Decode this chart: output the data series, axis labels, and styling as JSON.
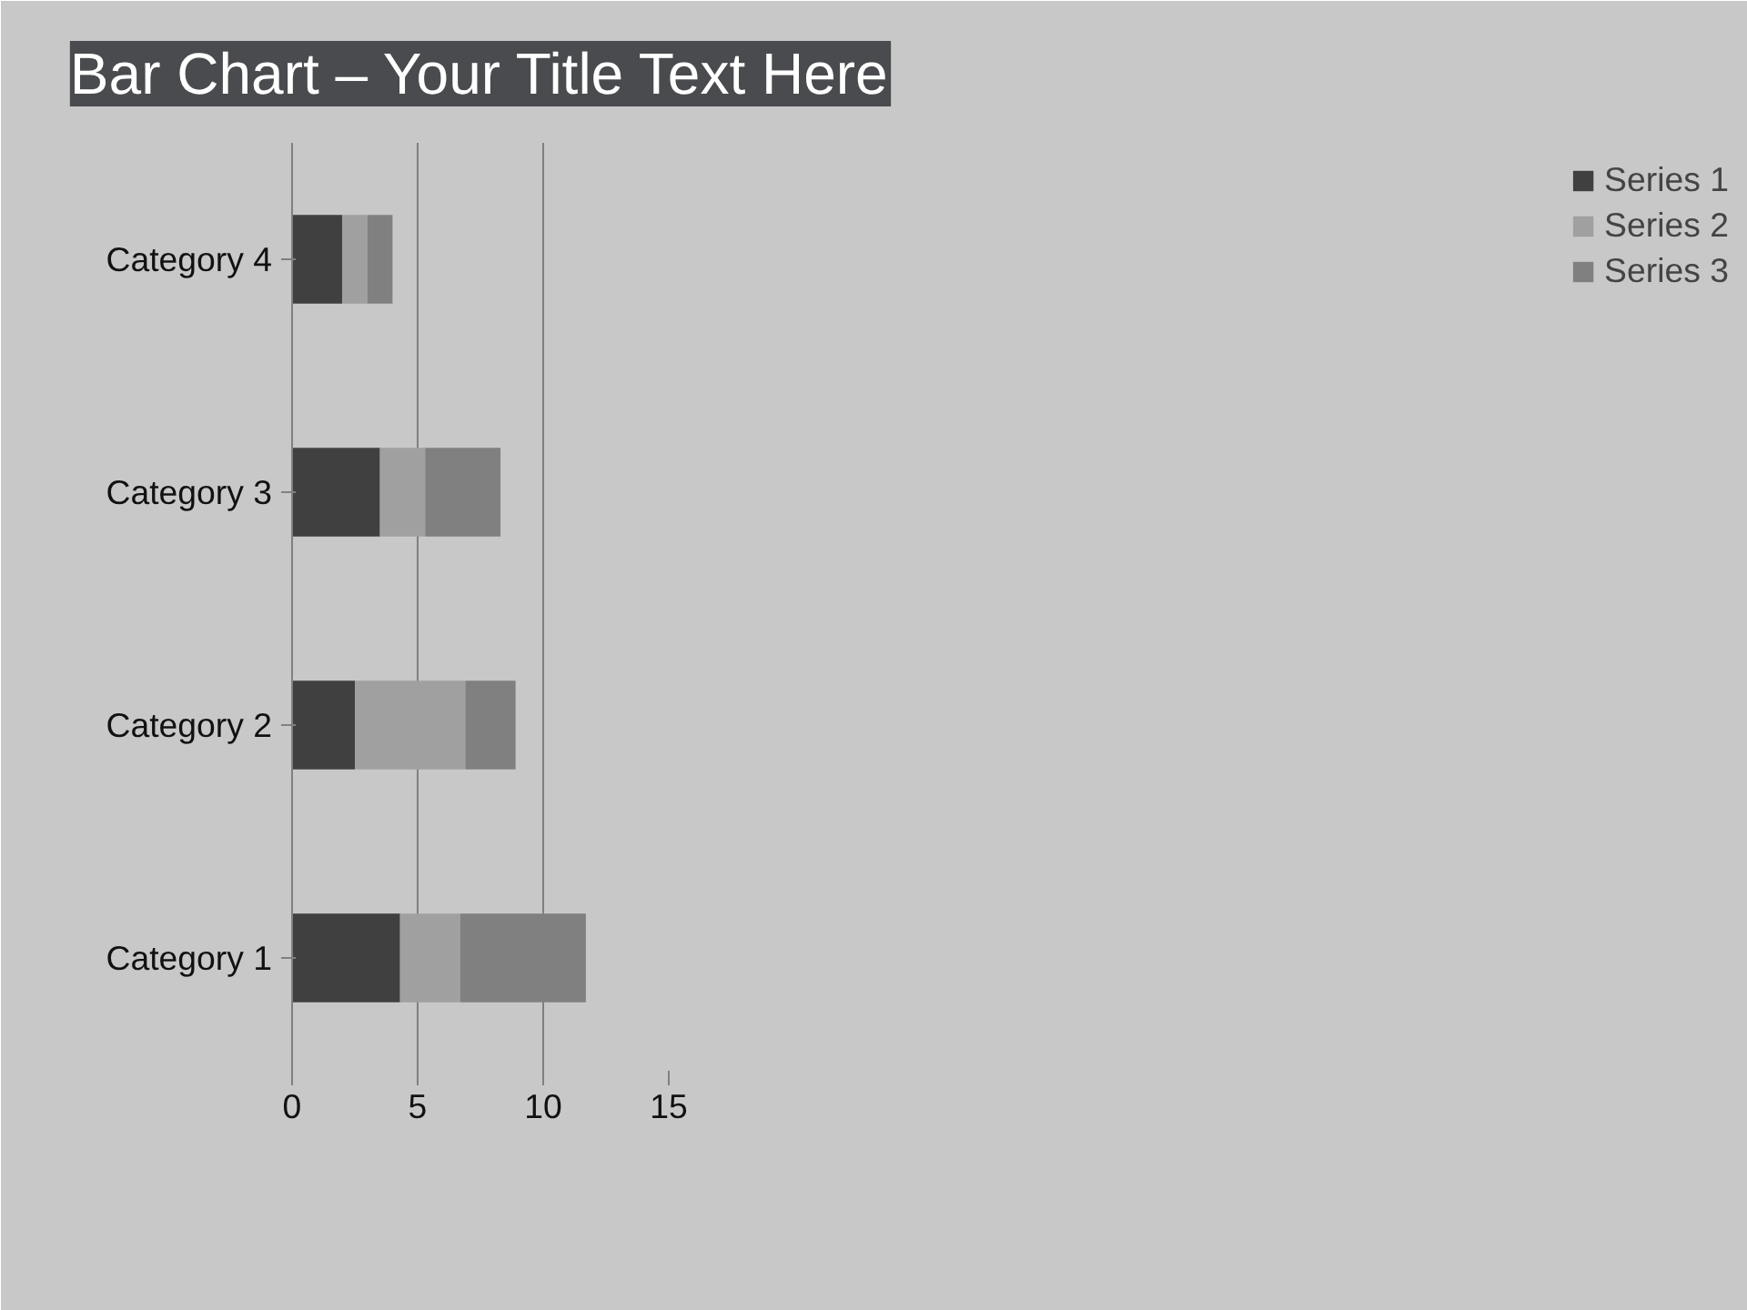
{
  "chart_data": {
    "type": "bar",
    "orientation": "horizontal",
    "stacked": true,
    "title": "Bar Chart – Your Title Text Here",
    "categories": [
      "Category 4",
      "Category 3",
      "Category 2",
      "Category 1"
    ],
    "series": [
      {
        "name": "Series 1",
        "color": "#404040",
        "values": [
          2,
          3.5,
          2.5,
          4.3
        ]
      },
      {
        "name": "Series 2",
        "color": "#a0a0a0",
        "values": [
          1,
          1.8,
          4.4,
          2.4
        ]
      },
      {
        "name": "Series 3",
        "color": "#808080",
        "values": [
          1,
          3,
          2,
          5
        ]
      }
    ],
    "xlim": [
      0,
      15
    ],
    "xticks": [
      0,
      5,
      10,
      15
    ],
    "grid": "x",
    "legend": "right"
  }
}
